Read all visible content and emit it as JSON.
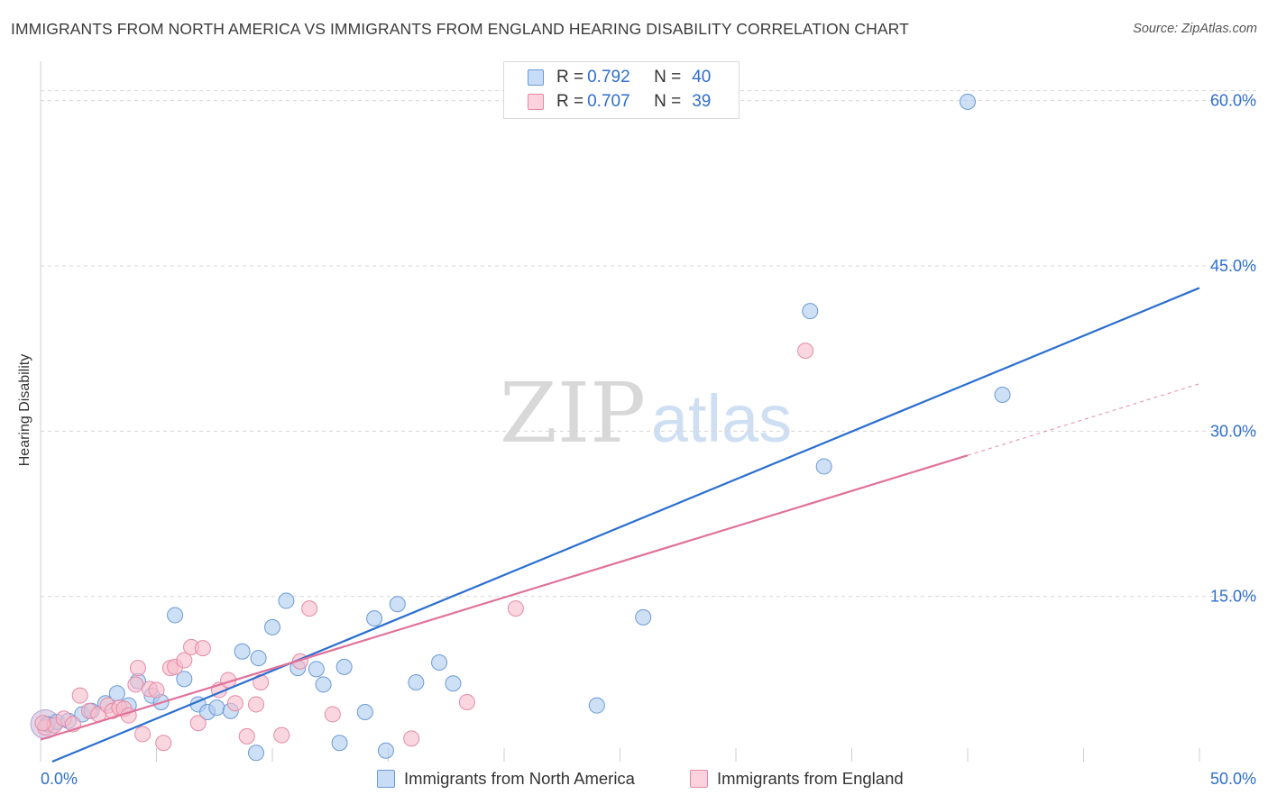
{
  "title": "IMMIGRANTS FROM NORTH AMERICA VS IMMIGRANTS FROM ENGLAND HEARING DISABILITY CORRELATION CHART",
  "source": "Source: ZipAtlas.com",
  "watermark": {
    "zip": "ZIP",
    "atlas": "atlas"
  },
  "colors": {
    "blue_fill": "#aecbef",
    "blue_stroke": "#6a9ad6",
    "blue_line": "#2b6fcf",
    "pink_fill": "#f7bccb",
    "pink_stroke": "#e48aa6",
    "pink_line": "#e0719a",
    "tick_text": "#2f6fcb",
    "grid": "#d6d6d6"
  },
  "legend": {
    "rows": [
      {
        "r_label": "R = ",
        "r_value": "0.792",
        "n_label": "N = ",
        "n_value": "40"
      },
      {
        "r_label": "R = ",
        "r_value": "0.707",
        "n_label": "N = ",
        "n_value": "39"
      }
    ]
  },
  "bottom_legend": [
    "Immigrants from North America",
    "Immigrants from England"
  ],
  "chart_data": {
    "type": "scatter",
    "title": "IMMIGRANTS FROM NORTH AMERICA VS IMMIGRANTS FROM ENGLAND HEARING DISABILITY CORRELATION CHART",
    "xlabel": "",
    "ylabel": "Hearing Disability",
    "xlim": [
      0,
      50
    ],
    "ylim": [
      0,
      63
    ],
    "x_tick_labels": [
      "0.0%",
      "50.0%"
    ],
    "y_ticks": [
      15,
      30,
      45,
      60
    ],
    "y_tick_labels": [
      "15.0%",
      "30.0%",
      "45.0%",
      "60.0%"
    ],
    "grid": true,
    "legend_position": "top-center",
    "series": [
      {
        "name": "Immigrants from North America",
        "color": "#aecbef",
        "r": 0.792,
        "n": 40,
        "trendline": {
          "x": [
            0.5,
            50
          ],
          "y": [
            0.0,
            43.0
          ]
        },
        "points": [
          [
            0.3,
            3.4
          ],
          [
            0.7,
            3.6
          ],
          [
            1.2,
            3.7
          ],
          [
            1.8,
            4.3
          ],
          [
            2.2,
            4.6
          ],
          [
            2.8,
            5.3
          ],
          [
            3.3,
            6.2
          ],
          [
            3.8,
            5.1
          ],
          [
            4.2,
            7.3
          ],
          [
            4.8,
            6.0
          ],
          [
            5.2,
            5.4
          ],
          [
            5.8,
            13.3
          ],
          [
            6.2,
            7.5
          ],
          [
            6.8,
            5.2
          ],
          [
            7.2,
            4.5
          ],
          [
            7.6,
            4.9
          ],
          [
            8.2,
            4.6
          ],
          [
            8.7,
            10.0
          ],
          [
            9.3,
            0.8
          ],
          [
            9.4,
            9.4
          ],
          [
            10.0,
            12.2
          ],
          [
            10.6,
            14.6
          ],
          [
            11.1,
            8.5
          ],
          [
            11.9,
            8.4
          ],
          [
            12.2,
            7.0
          ],
          [
            12.9,
            1.7
          ],
          [
            13.1,
            8.6
          ],
          [
            14.0,
            4.5
          ],
          [
            14.4,
            13.0
          ],
          [
            14.9,
            1.0
          ],
          [
            15.4,
            14.3
          ],
          [
            16.2,
            7.2
          ],
          [
            17.2,
            9.0
          ],
          [
            17.8,
            7.1
          ],
          [
            24.0,
            5.1
          ],
          [
            26.0,
            13.1
          ],
          [
            33.2,
            40.9
          ],
          [
            33.8,
            26.8
          ],
          [
            40.0,
            59.9
          ],
          [
            41.5,
            33.3
          ]
        ]
      },
      {
        "name": "Immigrants from England",
        "color": "#f7bccb",
        "r": 0.707,
        "n": 39,
        "trendline": {
          "x": [
            0,
            40
          ],
          "y": [
            2.0,
            27.8
          ]
        },
        "trendline_dashed": {
          "x": [
            40,
            50
          ],
          "y": [
            27.8,
            34.3
          ]
        },
        "points": [
          [
            0.2,
            3.1
          ],
          [
            0.6,
            3.3
          ],
          [
            1.0,
            3.9
          ],
          [
            1.4,
            3.4
          ],
          [
            1.7,
            6.0
          ],
          [
            2.1,
            4.6
          ],
          [
            2.5,
            4.3
          ],
          [
            2.9,
            5.1
          ],
          [
            3.1,
            4.6
          ],
          [
            3.4,
            4.9
          ],
          [
            3.6,
            4.8
          ],
          [
            3.8,
            4.2
          ],
          [
            4.1,
            7.0
          ],
          [
            4.2,
            8.5
          ],
          [
            4.4,
            2.5
          ],
          [
            4.7,
            6.6
          ],
          [
            5.0,
            6.5
          ],
          [
            5.3,
            1.7
          ],
          [
            5.6,
            8.5
          ],
          [
            5.8,
            8.6
          ],
          [
            6.2,
            9.2
          ],
          [
            6.5,
            10.4
          ],
          [
            6.8,
            3.5
          ],
          [
            7.0,
            10.3
          ],
          [
            7.7,
            6.5
          ],
          [
            8.1,
            7.4
          ],
          [
            8.4,
            5.3
          ],
          [
            8.9,
            2.3
          ],
          [
            9.3,
            5.2
          ],
          [
            9.5,
            7.2
          ],
          [
            10.4,
            2.4
          ],
          [
            11.2,
            9.1
          ],
          [
            11.6,
            13.9
          ],
          [
            12.6,
            4.3
          ],
          [
            16.0,
            2.1
          ],
          [
            18.4,
            5.4
          ],
          [
            20.5,
            13.9
          ],
          [
            33.0,
            37.3
          ],
          [
            0.1,
            3.5
          ]
        ]
      }
    ]
  }
}
